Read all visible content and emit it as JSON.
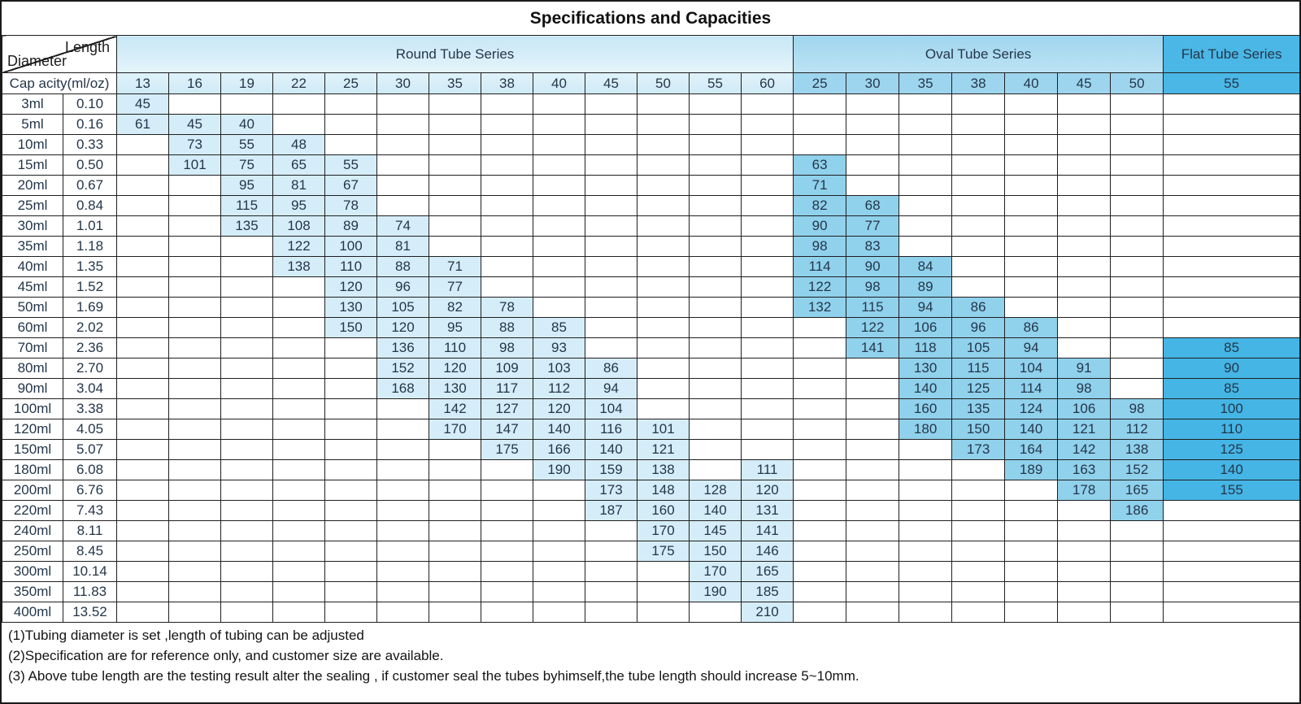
{
  "title": "Specifications and Capacities",
  "corner": {
    "length_label": "Length",
    "diameter_label": "Diameter",
    "capacity_label": "Cap acity(ml/oz)"
  },
  "series": [
    {
      "key": "round",
      "name": "Round Tube Series",
      "diameters": [
        13,
        16,
        19,
        22,
        25,
        30,
        35,
        38,
        40,
        45,
        50,
        55,
        60
      ]
    },
    {
      "key": "oval",
      "name": "Oval Tube Series",
      "diameters": [
        25,
        30,
        35,
        38,
        40,
        45,
        50
      ]
    },
    {
      "key": "flat",
      "name": "Flat Tube Series",
      "diameters": [
        55
      ]
    }
  ],
  "rows": [
    {
      "ml": "3ml",
      "oz": "0.10",
      "round": [
        45,
        null,
        null,
        null,
        null,
        null,
        null,
        null,
        null,
        null,
        null,
        null,
        null
      ],
      "oval": [
        null,
        null,
        null,
        null,
        null,
        null,
        null
      ],
      "flat": [
        null
      ]
    },
    {
      "ml": "5ml",
      "oz": "0.16",
      "round": [
        61,
        45,
        40,
        null,
        null,
        null,
        null,
        null,
        null,
        null,
        null,
        null,
        null
      ],
      "oval": [
        null,
        null,
        null,
        null,
        null,
        null,
        null
      ],
      "flat": [
        null
      ]
    },
    {
      "ml": "10ml",
      "oz": "0.33",
      "round": [
        null,
        73,
        55,
        48,
        null,
        null,
        null,
        null,
        null,
        null,
        null,
        null,
        null
      ],
      "oval": [
        null,
        null,
        null,
        null,
        null,
        null,
        null
      ],
      "flat": [
        null
      ]
    },
    {
      "ml": "15ml",
      "oz": "0.50",
      "round": [
        null,
        101,
        75,
        65,
        55,
        null,
        null,
        null,
        null,
        null,
        null,
        null,
        null
      ],
      "oval": [
        63,
        null,
        null,
        null,
        null,
        null,
        null
      ],
      "flat": [
        null
      ]
    },
    {
      "ml": "20ml",
      "oz": "0.67",
      "round": [
        null,
        null,
        95,
        81,
        67,
        null,
        null,
        null,
        null,
        null,
        null,
        null,
        null
      ],
      "oval": [
        71,
        null,
        null,
        null,
        null,
        null,
        null
      ],
      "flat": [
        null
      ]
    },
    {
      "ml": "25ml",
      "oz": "0.84",
      "round": [
        null,
        null,
        115,
        95,
        78,
        null,
        null,
        null,
        null,
        null,
        null,
        null,
        null
      ],
      "oval": [
        82,
        68,
        null,
        null,
        null,
        null,
        null
      ],
      "flat": [
        null
      ]
    },
    {
      "ml": "30ml",
      "oz": "1.01",
      "round": [
        null,
        null,
        135,
        108,
        89,
        74,
        null,
        null,
        null,
        null,
        null,
        null,
        null
      ],
      "oval": [
        90,
        77,
        null,
        null,
        null,
        null,
        null
      ],
      "flat": [
        null
      ]
    },
    {
      "ml": "35ml",
      "oz": "1.18",
      "round": [
        null,
        null,
        null,
        122,
        100,
        81,
        null,
        null,
        null,
        null,
        null,
        null,
        null
      ],
      "oval": [
        98,
        83,
        null,
        null,
        null,
        null,
        null
      ],
      "flat": [
        null
      ]
    },
    {
      "ml": "40ml",
      "oz": "1.35",
      "round": [
        null,
        null,
        null,
        138,
        110,
        88,
        71,
        null,
        null,
        null,
        null,
        null,
        null
      ],
      "oval": [
        114,
        90,
        84,
        null,
        null,
        null,
        null
      ],
      "flat": [
        null
      ]
    },
    {
      "ml": "45ml",
      "oz": "1.52",
      "round": [
        null,
        null,
        null,
        null,
        120,
        96,
        77,
        null,
        null,
        null,
        null,
        null,
        null
      ],
      "oval": [
        122,
        98,
        89,
        null,
        null,
        null,
        null
      ],
      "flat": [
        null
      ]
    },
    {
      "ml": "50ml",
      "oz": "1.69",
      "round": [
        null,
        null,
        null,
        null,
        130,
        105,
        82,
        78,
        null,
        null,
        null,
        null,
        null
      ],
      "oval": [
        132,
        115,
        94,
        86,
        null,
        null,
        null
      ],
      "flat": [
        null
      ]
    },
    {
      "ml": "60ml",
      "oz": "2.02",
      "round": [
        null,
        null,
        null,
        null,
        150,
        120,
        95,
        88,
        85,
        null,
        null,
        null,
        null
      ],
      "oval": [
        null,
        122,
        106,
        96,
        86,
        null,
        null
      ],
      "flat": [
        null
      ]
    },
    {
      "ml": "70ml",
      "oz": "2.36",
      "round": [
        null,
        null,
        null,
        null,
        null,
        136,
        110,
        98,
        93,
        null,
        null,
        null,
        null
      ],
      "oval": [
        null,
        141,
        118,
        105,
        94,
        null,
        null
      ],
      "flat": [
        85
      ]
    },
    {
      "ml": "80ml",
      "oz": "2.70",
      "round": [
        null,
        null,
        null,
        null,
        null,
        152,
        120,
        109,
        103,
        86,
        null,
        null,
        null
      ],
      "oval": [
        null,
        null,
        130,
        115,
        104,
        91,
        null
      ],
      "flat": [
        90
      ]
    },
    {
      "ml": "90ml",
      "oz": "3.04",
      "round": [
        null,
        null,
        null,
        null,
        null,
        168,
        130,
        117,
        112,
        94,
        null,
        null,
        null
      ],
      "oval": [
        null,
        null,
        140,
        125,
        114,
        98,
        null
      ],
      "flat": [
        85
      ]
    },
    {
      "ml": "100ml",
      "oz": "3.38",
      "round": [
        null,
        null,
        null,
        null,
        null,
        null,
        142,
        127,
        120,
        104,
        null,
        null,
        null
      ],
      "oval": [
        null,
        null,
        160,
        135,
        124,
        106,
        98
      ],
      "flat": [
        100
      ]
    },
    {
      "ml": "120ml",
      "oz": "4.05",
      "round": [
        null,
        null,
        null,
        null,
        null,
        null,
        170,
        147,
        140,
        116,
        101,
        null,
        null
      ],
      "oval": [
        null,
        null,
        180,
        150,
        140,
        121,
        112
      ],
      "flat": [
        110
      ]
    },
    {
      "ml": "150ml",
      "oz": "5.07",
      "round": [
        null,
        null,
        null,
        null,
        null,
        null,
        null,
        175,
        166,
        140,
        121,
        null,
        null
      ],
      "oval": [
        null,
        null,
        null,
        173,
        164,
        142,
        138
      ],
      "flat": [
        125
      ]
    },
    {
      "ml": "180ml",
      "oz": "6.08",
      "round": [
        null,
        null,
        null,
        null,
        null,
        null,
        null,
        null,
        190,
        159,
        138,
        null,
        111
      ],
      "oval": [
        null,
        null,
        null,
        null,
        189,
        163,
        152
      ],
      "flat": [
        140
      ]
    },
    {
      "ml": "200ml",
      "oz": "6.76",
      "round": [
        null,
        null,
        null,
        null,
        null,
        null,
        null,
        null,
        null,
        173,
        148,
        128,
        120
      ],
      "oval": [
        null,
        null,
        null,
        null,
        null,
        178,
        165
      ],
      "flat": [
        155
      ]
    },
    {
      "ml": "220ml",
      "oz": "7.43",
      "round": [
        null,
        null,
        null,
        null,
        null,
        null,
        null,
        null,
        null,
        187,
        160,
        140,
        131
      ],
      "oval": [
        null,
        null,
        null,
        null,
        null,
        null,
        186
      ],
      "flat": [
        null
      ]
    },
    {
      "ml": "240ml",
      "oz": "8.11",
      "round": [
        null,
        null,
        null,
        null,
        null,
        null,
        null,
        null,
        null,
        null,
        170,
        145,
        141
      ],
      "oval": [
        null,
        null,
        null,
        null,
        null,
        null,
        null
      ],
      "flat": [
        null
      ]
    },
    {
      "ml": "250ml",
      "oz": "8.45",
      "round": [
        null,
        null,
        null,
        null,
        null,
        null,
        null,
        null,
        null,
        null,
        175,
        150,
        146
      ],
      "oval": [
        null,
        null,
        null,
        null,
        null,
        null,
        null
      ],
      "flat": [
        null
      ]
    },
    {
      "ml": "300ml",
      "oz": "10.14",
      "round": [
        null,
        null,
        null,
        null,
        null,
        null,
        null,
        null,
        null,
        null,
        null,
        170,
        165
      ],
      "oval": [
        null,
        null,
        null,
        null,
        null,
        null,
        null
      ],
      "flat": [
        null
      ]
    },
    {
      "ml": "350ml",
      "oz": "11.83",
      "round": [
        null,
        null,
        null,
        null,
        null,
        null,
        null,
        null,
        null,
        null,
        null,
        190,
        185
      ],
      "oval": [
        null,
        null,
        null,
        null,
        null,
        null,
        null
      ],
      "flat": [
        null
      ]
    },
    {
      "ml": "400ml",
      "oz": "13.52",
      "round": [
        null,
        null,
        null,
        null,
        null,
        null,
        null,
        null,
        null,
        null,
        null,
        null,
        210
      ],
      "oval": [
        null,
        null,
        null,
        null,
        null,
        null,
        null
      ],
      "flat": [
        null
      ]
    }
  ],
  "notes": [
    "(1)Tubing diameter is set ,length of tubing can be adjusted",
    "(2)Specification are for reference only, and customer size are available.",
    "(3) Above tube length are the testing result alter the sealing , if customer seal the tubes byhimself,the tube length should increase 5~10mm."
  ],
  "colors": {
    "round_fill": "#d5edf8",
    "oval_fill": "#90d1ec",
    "flat_fill": "#45b5e5",
    "round_header": "#cfeaf6",
    "oval_header": "#9ed5ee",
    "flat_header": "#4ab7e6",
    "border": "#1f1f1f",
    "text": "#24364a"
  }
}
